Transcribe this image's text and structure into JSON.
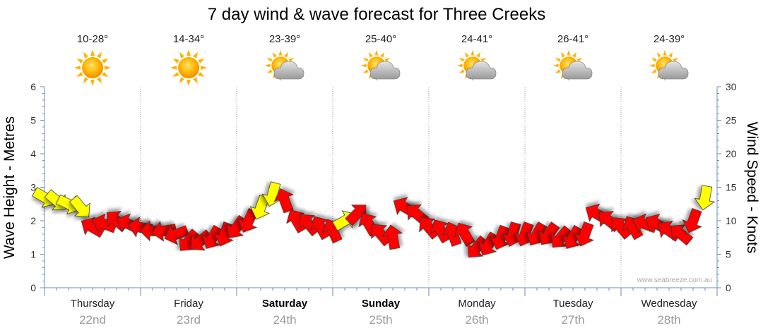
{
  "chart_data": {
    "type": "line",
    "title": "7 day wind & wave forecast for Three Creeks",
    "ylabel_left": "Wave Height - Metres",
    "ylabel_right": "Wind Speed - Knots",
    "ylim_left": [
      0,
      6
    ],
    "ylim_right": [
      0,
      30
    ],
    "yticks_left": [
      "0",
      "1",
      "2",
      "3",
      "4",
      "5",
      "6"
    ],
    "yticks_right": [
      "0",
      "5",
      "10",
      "15",
      "20",
      "25",
      "30"
    ],
    "grid": "dotted vertical day dividers",
    "credit": "www.seabreeze.com.au",
    "days": [
      {
        "day": "Thursday",
        "date": "22nd",
        "bold": false,
        "temp": "10-28°",
        "weather": "sunny-icon"
      },
      {
        "day": "Friday",
        "date": "23rd",
        "bold": false,
        "temp": "14-34°",
        "weather": "sunny-icon"
      },
      {
        "day": "Saturday",
        "date": "24th",
        "bold": true,
        "temp": "23-39°",
        "weather": "partly-cloudy-icon"
      },
      {
        "day": "Sunday",
        "date": "25th",
        "bold": true,
        "temp": "25-40°",
        "weather": "partly-cloudy-icon"
      },
      {
        "day": "Monday",
        "date": "26th",
        "bold": false,
        "temp": "24-41°",
        "weather": "partly-cloudy-icon"
      },
      {
        "day": "Tuesday",
        "date": "27th",
        "bold": false,
        "temp": "26-41°",
        "weather": "partly-cloudy-icon"
      },
      {
        "day": "Wednesday",
        "date": "28th",
        "bold": false,
        "temp": "24-39°",
        "weather": "partly-cloudy-icon"
      }
    ],
    "series": [
      {
        "name": "wind",
        "unit": "knots",
        "note": "hourly wind speed shown as direction arrows; yellow = light wind, red = stronger wind",
        "x_unit": "hours from Thursday 00:00",
        "x": [
          0,
          3,
          6,
          9,
          12,
          15,
          18,
          21,
          24,
          27,
          30,
          33,
          36,
          39,
          42,
          45,
          48,
          51,
          54,
          57,
          60,
          63,
          66,
          69,
          72,
          75,
          78,
          81,
          84,
          87,
          90,
          93,
          96,
          99,
          102,
          105,
          108,
          111,
          114,
          117,
          120,
          123,
          126,
          129,
          132,
          135,
          138,
          141,
          144,
          147,
          150,
          153,
          156,
          159,
          162,
          165
        ],
        "values": [
          13.5,
          13,
          12.5,
          12,
          9,
          9.5,
          10,
          9.5,
          9,
          8.5,
          8.5,
          8,
          7,
          7,
          7.5,
          8,
          9,
          10,
          12,
          14,
          13,
          10,
          9.5,
          9,
          8.5,
          10,
          11,
          9.5,
          8,
          7.5,
          12,
          11,
          9,
          8.5,
          8,
          8,
          6,
          6.5,
          7.5,
          8,
          8,
          8,
          8,
          7.5,
          7.5,
          8,
          11,
          10,
          9,
          9,
          9.5,
          9.5,
          8.5,
          8,
          10,
          13.5
        ],
        "colors": [
          "#ffff00",
          "#ffff00",
          "#ffff00",
          "#ffff00",
          "#ff0000",
          "#ff0000",
          "#ff0000",
          "#ff0000",
          "#ff0000",
          "#ff0000",
          "#ff0000",
          "#ff0000",
          "#ff0000",
          "#ff0000",
          "#ff0000",
          "#ff0000",
          "#ff0000",
          "#ff0000",
          "#ffff00",
          "#ffff00",
          "#ff0000",
          "#ff0000",
          "#ff0000",
          "#ff0000",
          "#ff0000",
          "#ffff00",
          "#ff0000",
          "#ff0000",
          "#ff0000",
          "#ff0000",
          "#ff0000",
          "#ff0000",
          "#ff0000",
          "#ff0000",
          "#ff0000",
          "#ff0000",
          "#ff0000",
          "#ff0000",
          "#ff0000",
          "#ff0000",
          "#ff0000",
          "#ff0000",
          "#ff0000",
          "#ff0000",
          "#ff0000",
          "#ff0000",
          "#ff0000",
          "#ff0000",
          "#ff0000",
          "#ff0000",
          "#ff0000",
          "#ff0000",
          "#ff0000",
          "#ff0000",
          "#ff0000",
          "#ffff00"
        ],
        "direction_deg": [
          120,
          130,
          115,
          140,
          300,
          290,
          310,
          295,
          280,
          270,
          260,
          250,
          220,
          230,
          210,
          200,
          215,
          205,
          200,
          195,
          340,
          330,
          320,
          330,
          335,
          60,
          45,
          330,
          320,
          350,
          300,
          310,
          320,
          330,
          340,
          330,
          220,
          210,
          200,
          195,
          200,
          210,
          215,
          220,
          210,
          200,
          300,
          310,
          320,
          330,
          290,
          300,
          305,
          310,
          200,
          190
        ]
      }
    ]
  }
}
